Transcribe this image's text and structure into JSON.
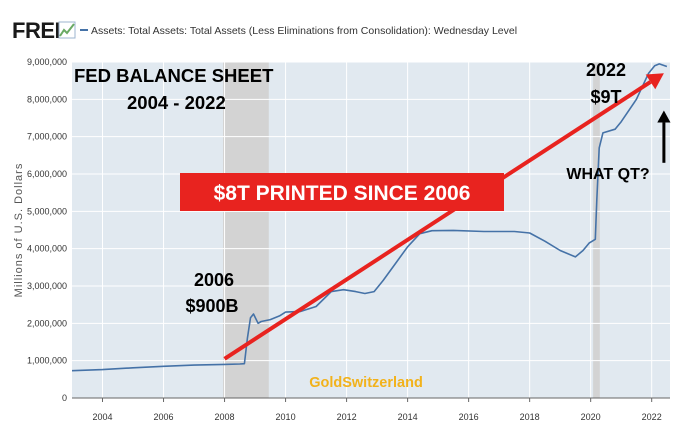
{
  "header": {
    "brand": "FRED",
    "series_title": "Assets: Total Assets: Total Assets (Less Eliminations from Consolidation): Wednesday Level"
  },
  "colors": {
    "plot_bg": "#e1e9f0",
    "series": "#4572a7",
    "recession": "#d3d3d3",
    "arrow": "#e8231f",
    "banner": "#e8231f",
    "watermark": "#f2b21b",
    "fred_green": "#6aaa64"
  },
  "chart_data": {
    "type": "line",
    "title": "FED BALANCE SHEET",
    "subtitle": "2004 - 2022",
    "xlabel": "",
    "ylabel": "Millions of U.S. Dollars",
    "xlim": [
      2003,
      2022.6
    ],
    "ylim": [
      0,
      9000000
    ],
    "x_ticks": [
      2004,
      2006,
      2008,
      2010,
      2012,
      2014,
      2016,
      2018,
      2020,
      2022
    ],
    "x_tick_labels": [
      "2004",
      "2006",
      "2008",
      "2010",
      "2012",
      "2014",
      "2016",
      "2018",
      "2020",
      "2022"
    ],
    "y_ticks": [
      0,
      1000000,
      2000000,
      3000000,
      4000000,
      5000000,
      6000000,
      7000000,
      8000000,
      9000000
    ],
    "y_tick_labels": [
      "0",
      "1,000,000",
      "2,000,000",
      "3,000,000",
      "4,000,000",
      "5,000,000",
      "6,000,000",
      "7,000,000",
      "8,000,000",
      "9,000,000"
    ],
    "recessions": [
      [
        2007.95,
        2009.45
      ],
      [
        2020.08,
        2020.3
      ]
    ],
    "series": [
      {
        "values": [
          [
            2003.0,
            730000
          ],
          [
            2004.0,
            760000
          ],
          [
            2005.0,
            810000
          ],
          [
            2006.0,
            850000
          ],
          [
            2007.0,
            880000
          ],
          [
            2008.0,
            900000
          ],
          [
            2008.5,
            910000
          ],
          [
            2008.65,
            920000
          ],
          [
            2008.75,
            1600000
          ],
          [
            2008.85,
            2150000
          ],
          [
            2008.95,
            2250000
          ],
          [
            2009.1,
            2000000
          ],
          [
            2009.2,
            2050000
          ],
          [
            2009.5,
            2100000
          ],
          [
            2009.8,
            2200000
          ],
          [
            2010.0,
            2300000
          ],
          [
            2010.5,
            2320000
          ],
          [
            2011.0,
            2450000
          ],
          [
            2011.5,
            2850000
          ],
          [
            2011.9,
            2900000
          ],
          [
            2012.3,
            2850000
          ],
          [
            2012.6,
            2800000
          ],
          [
            2012.9,
            2850000
          ],
          [
            2013.2,
            3150000
          ],
          [
            2013.6,
            3600000
          ],
          [
            2014.0,
            4050000
          ],
          [
            2014.4,
            4400000
          ],
          [
            2014.8,
            4480000
          ],
          [
            2015.5,
            4490000
          ],
          [
            2016.5,
            4460000
          ],
          [
            2017.5,
            4460000
          ],
          [
            2018.0,
            4420000
          ],
          [
            2018.5,
            4200000
          ],
          [
            2019.0,
            3950000
          ],
          [
            2019.5,
            3780000
          ],
          [
            2019.75,
            3950000
          ],
          [
            2019.95,
            4150000
          ],
          [
            2020.15,
            4250000
          ],
          [
            2020.2,
            5300000
          ],
          [
            2020.28,
            6700000
          ],
          [
            2020.4,
            7100000
          ],
          [
            2020.8,
            7200000
          ],
          [
            2021.0,
            7400000
          ],
          [
            2021.5,
            8000000
          ],
          [
            2021.9,
            8700000
          ],
          [
            2022.1,
            8900000
          ],
          [
            2022.25,
            8950000
          ],
          [
            2022.5,
            8880000
          ]
        ]
      }
    ],
    "annotations": {
      "start_year": "2006",
      "start_value": "$900B",
      "end_year": "2022",
      "end_value": "$9T",
      "banner": "$8T PRINTED SINCE 2006",
      "question": "WHAT QT?",
      "watermark": "GoldSwitzerland"
    },
    "trend_arrow": {
      "from": [
        2008.0,
        1050000
      ],
      "to": [
        2022.4,
        8700000
      ]
    },
    "qt_arrow": {
      "from": [
        2022.4,
        6300000
      ],
      "to": [
        2022.4,
        7700000
      ]
    },
    "grid": true,
    "legend": "none"
  }
}
